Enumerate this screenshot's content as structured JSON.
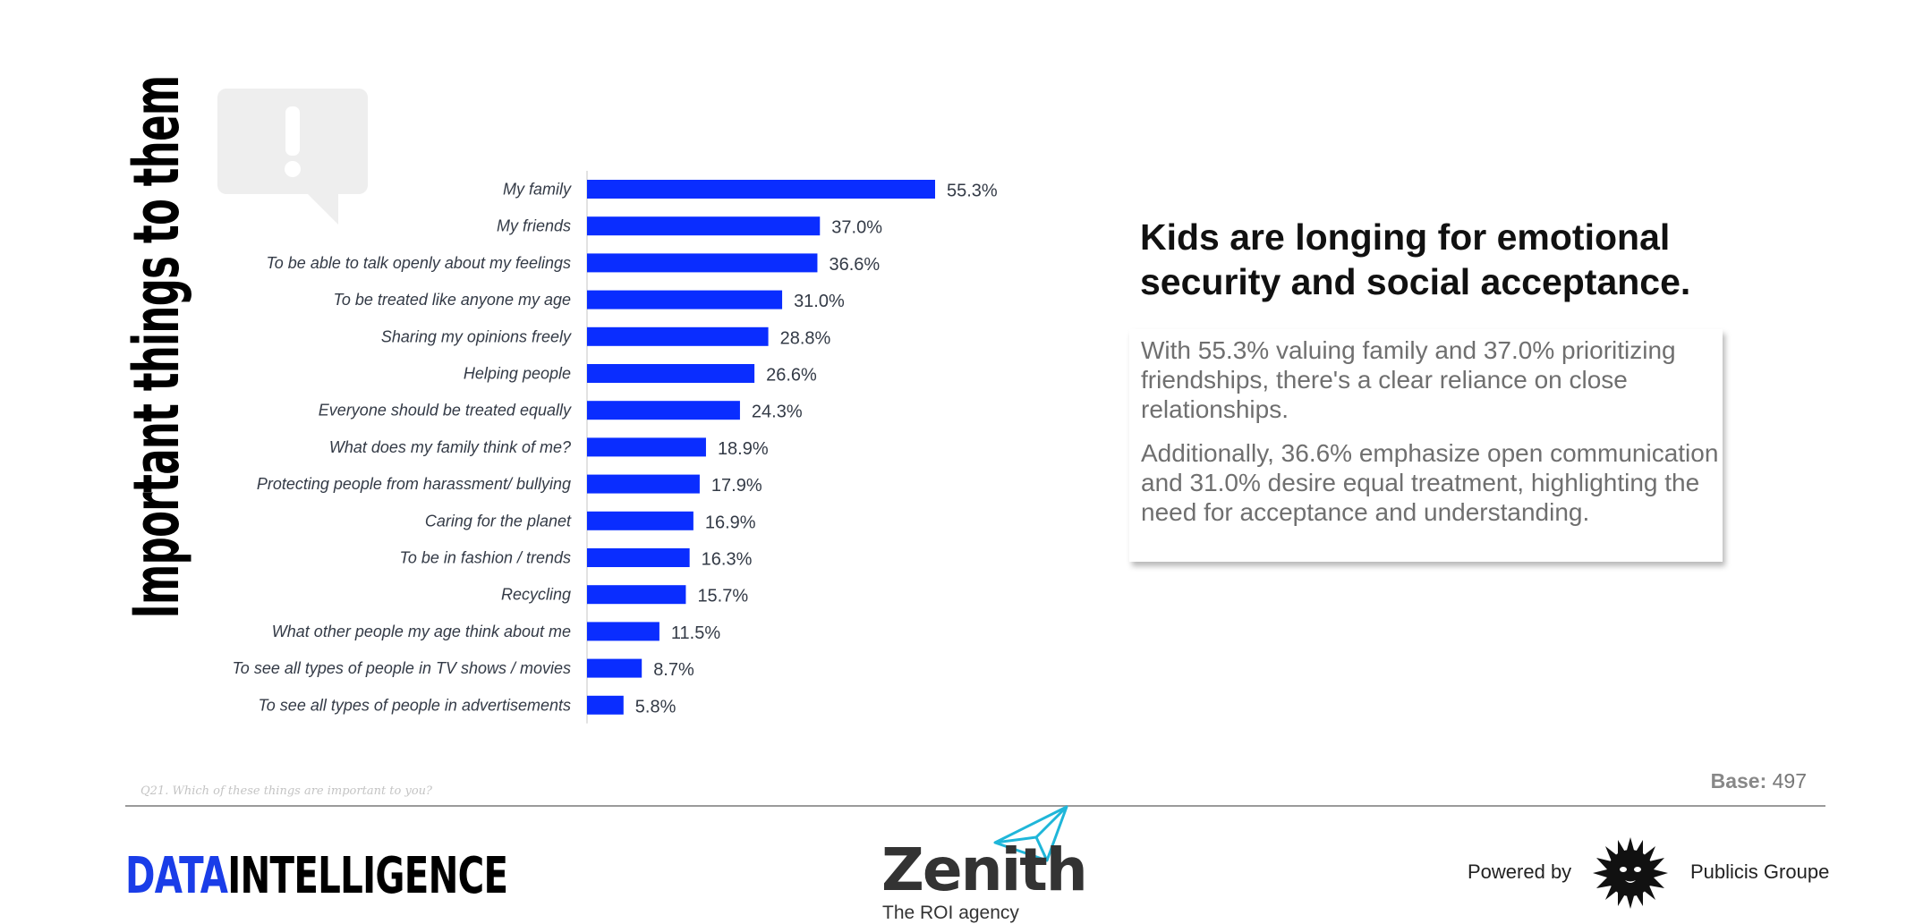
{
  "vertical_title": "Important things to them",
  "headline": "Kids are longing for emotional security and social acceptance.",
  "card": {
    "p1": "With 55.3% valuing family and 37.0% prioritizing friendships, there's a clear reliance on close relationships.",
    "p2": "Additionally, 36.6% emphasize open communication and 31.0% desire equal treatment, highlighting the need for acceptance and understanding."
  },
  "footer": {
    "question": "Q21. Which of these things are important to you?",
    "base_label": "Base:",
    "base_value": "497",
    "logo_left_a": "DATA",
    "logo_left_b": "INTELLIGENCE",
    "zenith": "Zenith",
    "zenith_tagline": "The ROI agency",
    "powered_by": "Powered by",
    "publicis": "Publicis Groupe"
  },
  "icons": {
    "bubble": "exclamation-speech-bubble-icon",
    "plane": "paper-plane-icon",
    "lion": "publicis-lion-icon"
  },
  "colors": {
    "bar": "#0a2dff",
    "bubble": "#eeeeee",
    "plane": "#1fb6d9"
  },
  "chart_data": {
    "type": "bar",
    "orientation": "horizontal",
    "categories": [
      "My family",
      "My friends",
      "To be able to talk openly about my feelings",
      "To be treated like anyone my age",
      "Sharing my opinions freely",
      "Helping people",
      "Everyone should be treated equally",
      "What does my family think of me?",
      "Protecting people from harassment/ bullying",
      "Caring for the planet",
      "To be in fashion / trends",
      "Recycling",
      "What other people my age think about me",
      "To see all types of people in TV shows / movies",
      "To see all types of people in advertisements"
    ],
    "values": [
      55.3,
      37.0,
      36.6,
      31.0,
      28.8,
      26.6,
      24.3,
      18.9,
      17.9,
      16.9,
      16.3,
      15.7,
      11.5,
      8.7,
      5.8
    ],
    "value_labels": [
      "55.3%",
      "37.0%",
      "36.6%",
      "31.0%",
      "28.8%",
      "26.6%",
      "24.3%",
      "18.9%",
      "17.9%",
      "16.9%",
      "16.3%",
      "15.7%",
      "11.5%",
      "8.7%",
      "5.8%"
    ],
    "unit": "%",
    "xlim": [
      0,
      55.3
    ],
    "grid": false
  }
}
